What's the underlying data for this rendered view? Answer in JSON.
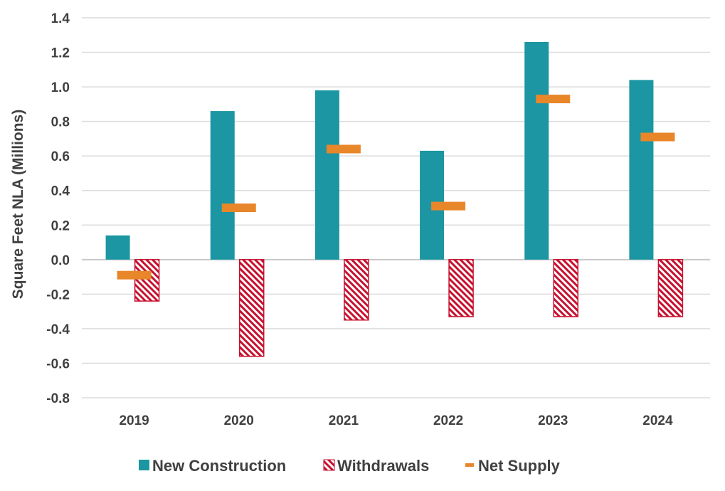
{
  "chart_data": {
    "type": "bar",
    "title": "",
    "xlabel": "",
    "ylabel": "Square Feet NLA (Millions)",
    "ylim": [
      -0.8,
      1.4
    ],
    "yticks": [
      "1.4",
      "1.2",
      "1.0",
      "0.8",
      "0.6",
      "0.4",
      "0.2",
      "0.0",
      "-0.2",
      "-0.4",
      "-0.6",
      "-0.8"
    ],
    "ytick_values": [
      1.4,
      1.2,
      1.0,
      0.8,
      0.6,
      0.4,
      0.2,
      0.0,
      -0.2,
      -0.4,
      -0.6,
      -0.8
    ],
    "grid": true,
    "legend_position": "bottom",
    "categories": [
      "2019",
      "2020",
      "2021",
      "2022",
      "2023",
      "2024"
    ],
    "series": [
      {
        "name": "New Construction",
        "kind": "bar",
        "color": "#1b96a2",
        "values": [
          0.14,
          0.86,
          0.98,
          0.63,
          1.26,
          1.04
        ]
      },
      {
        "name": "Withdrawals",
        "kind": "bar-hatched",
        "color": "#c8102e",
        "values": [
          -0.24,
          -0.56,
          -0.35,
          -0.33,
          -0.33,
          -0.33
        ]
      },
      {
        "name": "Net Supply",
        "kind": "marker-dash",
        "color": "#e8862a",
        "values": [
          -0.09,
          0.3,
          0.64,
          0.31,
          0.93,
          0.71
        ]
      }
    ]
  }
}
